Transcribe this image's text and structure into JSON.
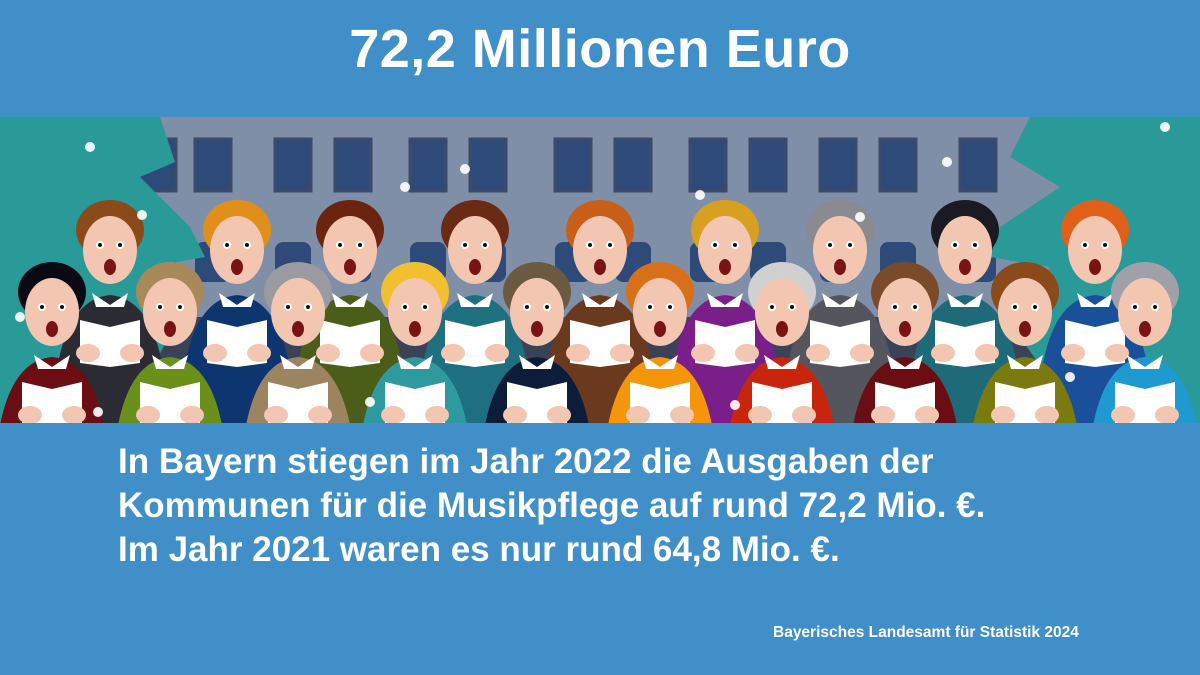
{
  "title": "72,2 Millionen Euro",
  "body": {
    "lines": [
      "In Bayern stiegen im Jahr 2022 die Ausgaben der",
      "Kommunen für die Musikpflege auf rund 72,2 Mio. €.",
      "Im Jahr 2021 waren es nur rund 64,8 Mio. €."
    ]
  },
  "source": "Bayerisches Landesamt für Statistik 2024",
  "colors": {
    "background": "#418fc8",
    "text": "#ffffff"
  },
  "illustration": {
    "subject": "choir-singing-in-front-of-building",
    "back_row_sweaters": [
      "#2b2b33",
      "#0d3670",
      "#4a5e1a",
      "#1e6f80",
      "#6b3a1e",
      "#7a1e8a",
      "#55555e",
      "#1e6a78",
      "#1a4f9a"
    ],
    "front_row_sweaters": [
      "#6a0e14",
      "#6a8f1a",
      "#9c8460",
      "#2e9aa0",
      "#0e1c3c",
      "#f5960a",
      "#c8260c",
      "#6a0e14",
      "#7a7a10",
      "#1e9ad0"
    ],
    "back_row_hair": [
      "#8a4a1a",
      "#e0901a",
      "#6a2410",
      "#6a2a14",
      "#c8601a",
      "#d8a020",
      "#8a8a90",
      "#1a1a22",
      "#e0601a"
    ],
    "front_row_hair": [
      "#0a0a14",
      "#a88a5a",
      "#9a9aa0",
      "#f0c030",
      "#6a5a40",
      "#d8701a",
      "#d0d0d0",
      "#7a4a2a",
      "#8a4a1a",
      "#a0a0a8"
    ]
  }
}
